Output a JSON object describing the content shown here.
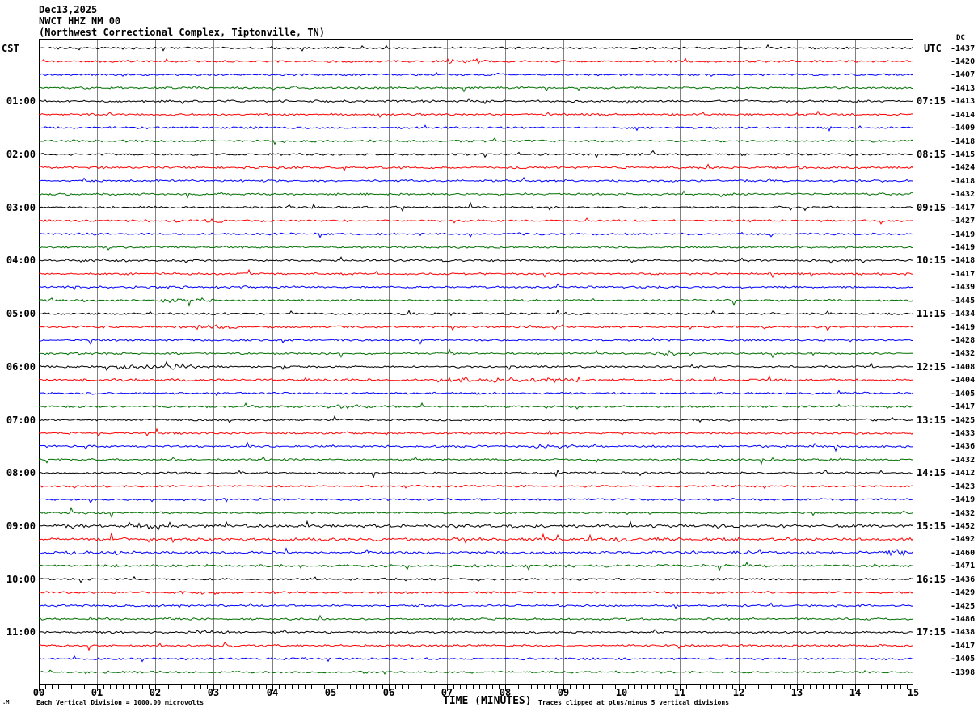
{
  "header": {
    "date": "Dec13,2025",
    "station": "NWCT HHZ NM 00",
    "location": "(Northwest Correctional Complex, Tiptonville, TN)"
  },
  "axes": {
    "left_label": "CST",
    "right_label": "UTC",
    "dc_label": "DC",
    "x_title": "TIME (MINUTES)"
  },
  "footer": {
    "watermark": ".M",
    "scale_note": "Each Vertical Division = 1000.00 microvolts",
    "clip_note": "Traces clipped at plus/minus 5 vertical divisions"
  },
  "chart_data": {
    "type": "line",
    "title": "NWCT HHZ NM 00 helicorder - Dec13,2025",
    "xlabel": "TIME (MINUTES)",
    "x_range": [
      0,
      15
    ],
    "x_ticks": [
      "00",
      "01",
      "02",
      "03",
      "04",
      "05",
      "06",
      "07",
      "08",
      "09",
      "10",
      "11",
      "12",
      "13",
      "14",
      "15"
    ],
    "minutes_per_row": 15,
    "grid": true,
    "grid_color": "#808080",
    "trace_colors": {
      "black": "#000000",
      "red": "#ff0000",
      "blue": "#0000ff",
      "green": "#007000"
    },
    "rows": [
      {
        "c": "black",
        "cst": "",
        "utc": "",
        "dc": "-1437"
      },
      {
        "c": "red",
        "cst": "",
        "utc": "",
        "dc": "-1420"
      },
      {
        "c": "blue",
        "cst": "",
        "utc": "",
        "dc": "-1407"
      },
      {
        "c": "green",
        "cst": "",
        "utc": "",
        "dc": "-1413"
      },
      {
        "c": "black",
        "cst": "01:00",
        "utc": "07:15",
        "dc": "-1413"
      },
      {
        "c": "red",
        "cst": "",
        "utc": "",
        "dc": "-1414"
      },
      {
        "c": "blue",
        "cst": "",
        "utc": "",
        "dc": "-1409"
      },
      {
        "c": "green",
        "cst": "",
        "utc": "",
        "dc": "-1418"
      },
      {
        "c": "black",
        "cst": "02:00",
        "utc": "08:15",
        "dc": "-1415"
      },
      {
        "c": "red",
        "cst": "",
        "utc": "",
        "dc": "-1424"
      },
      {
        "c": "blue",
        "cst": "",
        "utc": "",
        "dc": "-1418"
      },
      {
        "c": "green",
        "cst": "",
        "utc": "",
        "dc": "-1432"
      },
      {
        "c": "black",
        "cst": "03:00",
        "utc": "09:15",
        "dc": "-1417"
      },
      {
        "c": "red",
        "cst": "",
        "utc": "",
        "dc": "-1427"
      },
      {
        "c": "blue",
        "cst": "",
        "utc": "",
        "dc": "-1419"
      },
      {
        "c": "green",
        "cst": "",
        "utc": "",
        "dc": "-1419"
      },
      {
        "c": "black",
        "cst": "04:00",
        "utc": "10:15",
        "dc": "-1418"
      },
      {
        "c": "red",
        "cst": "",
        "utc": "",
        "dc": "-1417"
      },
      {
        "c": "blue",
        "cst": "",
        "utc": "",
        "dc": "-1439"
      },
      {
        "c": "green",
        "cst": "",
        "utc": "",
        "dc": "-1445"
      },
      {
        "c": "black",
        "cst": "05:00",
        "utc": "11:15",
        "dc": "-1434"
      },
      {
        "c": "red",
        "cst": "",
        "utc": "",
        "dc": "-1419"
      },
      {
        "c": "blue",
        "cst": "",
        "utc": "",
        "dc": "-1428"
      },
      {
        "c": "green",
        "cst": "",
        "utc": "",
        "dc": "-1432"
      },
      {
        "c": "black",
        "cst": "06:00",
        "utc": "12:15",
        "dc": "-1408"
      },
      {
        "c": "red",
        "cst": "",
        "utc": "",
        "dc": "-1404"
      },
      {
        "c": "blue",
        "cst": "",
        "utc": "",
        "dc": "-1405"
      },
      {
        "c": "green",
        "cst": "",
        "utc": "",
        "dc": "-1417"
      },
      {
        "c": "black",
        "cst": "07:00",
        "utc": "13:15",
        "dc": "-1425"
      },
      {
        "c": "red",
        "cst": "",
        "utc": "",
        "dc": "-1433"
      },
      {
        "c": "blue",
        "cst": "",
        "utc": "",
        "dc": "-1436"
      },
      {
        "c": "green",
        "cst": "",
        "utc": "",
        "dc": "-1432"
      },
      {
        "c": "black",
        "cst": "08:00",
        "utc": "14:15",
        "dc": "-1412"
      },
      {
        "c": "red",
        "cst": "",
        "utc": "",
        "dc": "-1423"
      },
      {
        "c": "blue",
        "cst": "",
        "utc": "",
        "dc": "-1419"
      },
      {
        "c": "green",
        "cst": "",
        "utc": "",
        "dc": "-1432"
      },
      {
        "c": "black",
        "cst": "09:00",
        "utc": "15:15",
        "dc": "-1452"
      },
      {
        "c": "red",
        "cst": "",
        "utc": "",
        "dc": "-1492"
      },
      {
        "c": "blue",
        "cst": "",
        "utc": "",
        "dc": "-1460"
      },
      {
        "c": "green",
        "cst": "",
        "utc": "",
        "dc": "-1471"
      },
      {
        "c": "black",
        "cst": "10:00",
        "utc": "16:15",
        "dc": "-1436"
      },
      {
        "c": "red",
        "cst": "",
        "utc": "",
        "dc": "-1429"
      },
      {
        "c": "blue",
        "cst": "",
        "utc": "",
        "dc": "-1425"
      },
      {
        "c": "green",
        "cst": "",
        "utc": "",
        "dc": "-1486"
      },
      {
        "c": "black",
        "cst": "11:00",
        "utc": "17:15",
        "dc": "-1438"
      },
      {
        "c": "red",
        "cst": "",
        "utc": "",
        "dc": "-1417"
      },
      {
        "c": "blue",
        "cst": "",
        "utc": "",
        "dc": "-1405"
      },
      {
        "c": "green",
        "cst": "",
        "utc": "",
        "dc": "-1398"
      }
    ],
    "noise": {
      "seed": 20251213,
      "base_amplitude": 1.5,
      "spike_prob": 0.02,
      "row_gains": {
        "9": 1.15,
        "25": 1.2,
        "36": 1.5,
        "37": 1.6,
        "38": 1.35,
        "39": 1.25
      },
      "events": [
        {
          "row": 1,
          "start": 7.0,
          "end": 7.7,
          "gain": 2.5
        },
        {
          "row": 13,
          "start": 2.3,
          "end": 3.2,
          "gain": 2.0
        },
        {
          "row": 16,
          "start": 0.7,
          "end": 1.6,
          "gain": 2.0
        },
        {
          "row": 19,
          "start": 2.1,
          "end": 3.0,
          "gain": 2.6
        },
        {
          "row": 21,
          "start": 2.4,
          "end": 3.4,
          "gain": 2.4
        },
        {
          "row": 23,
          "start": 10.6,
          "end": 10.9,
          "gain": 3.0
        },
        {
          "row": 24,
          "start": 1.3,
          "end": 2.7,
          "gain": 2.6
        },
        {
          "row": 25,
          "start": 6.8,
          "end": 9.3,
          "gain": 2.2
        },
        {
          "row": 27,
          "start": 4.9,
          "end": 5.7,
          "gain": 1.8
        },
        {
          "row": 30,
          "start": 8.4,
          "end": 9.2,
          "gain": 1.8
        },
        {
          "row": 36,
          "start": 1.4,
          "end": 2.3,
          "gain": 2.2
        },
        {
          "row": 38,
          "start": 14.4,
          "end": 15.0,
          "gain": 2.2
        },
        {
          "row": 41,
          "start": 2.4,
          "end": 3.1,
          "gain": 1.8
        },
        {
          "row": 44,
          "start": 2.7,
          "end": 3.4,
          "gain": 1.8
        }
      ]
    }
  }
}
